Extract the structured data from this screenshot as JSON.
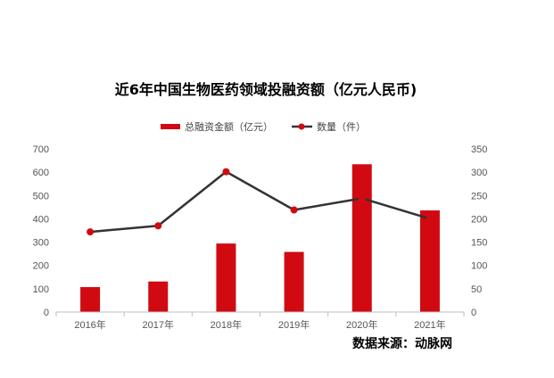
{
  "chart_data": {
    "type": "bar",
    "title": "近6年中国生物医药领域投融资额（亿元人民币)",
    "categories": [
      "2016年",
      "2017年",
      "2018年",
      "2019年",
      "2020年",
      "2021年"
    ],
    "series": [
      {
        "name": "总融资金额（亿元）",
        "kind": "bar",
        "axis": "left",
        "color": "#d10a12",
        "values": [
          107,
          131,
          294,
          258,
          634,
          436
        ]
      },
      {
        "name": "数量（件）",
        "kind": "line",
        "axis": "right",
        "color": "#333333",
        "marker_color": "#d10a12",
        "values": [
          172,
          185,
          301,
          219,
          244,
          200
        ]
      }
    ],
    "left_axis": {
      "min": 0,
      "max": 700,
      "step": 100
    },
    "right_axis": {
      "min": 0,
      "max": 350,
      "step": 50
    },
    "legend_position": "top-center",
    "grid": false
  },
  "source_text": "数据来源：动脉网"
}
